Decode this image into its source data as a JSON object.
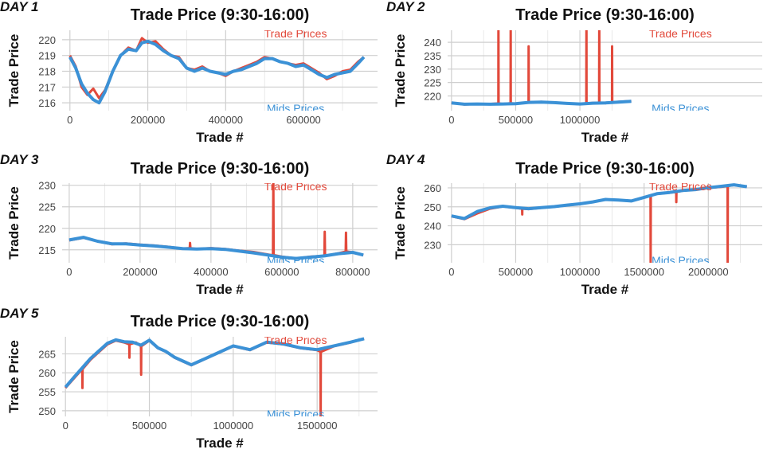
{
  "colors": {
    "trade": "#e2493b",
    "mids": "#3b91d6",
    "grid": "#cfcfcf",
    "text": "#111111"
  },
  "chart_data": [
    {
      "type": "line",
      "day_label": "DAY 1",
      "title": "Trade Price (9:30-16:00)",
      "xlabel": "Trade #",
      "ylabel": "Trade Price",
      "xlim": [
        -20000,
        790000
      ],
      "ylim": [
        215.5,
        220.6
      ],
      "xticks": [
        0,
        200000,
        400000,
        600000
      ],
      "xtick_labels": [
        "0",
        "200000",
        "400000",
        "600000"
      ],
      "yticks": [
        216,
        217,
        218,
        219,
        220
      ],
      "ytick_labels": [
        "216",
        "217",
        "218",
        "219",
        "220"
      ],
      "grid": true,
      "series": [
        {
          "name": "Trade Prices",
          "x": [
            0,
            15000,
            30000,
            45000,
            60000,
            75000,
            90000,
            110000,
            130000,
            150000,
            170000,
            185000,
            200000,
            220000,
            240000,
            260000,
            280000,
            300000,
            320000,
            340000,
            360000,
            380000,
            400000,
            420000,
            440000,
            460000,
            480000,
            500000,
            520000,
            540000,
            560000,
            580000,
            600000,
            620000,
            640000,
            660000,
            680000,
            700000,
            720000,
            740000,
            755000
          ],
          "y": [
            219.0,
            218.3,
            217.0,
            216.5,
            216.9,
            216.3,
            216.8,
            218.0,
            219.0,
            219.5,
            219.3,
            220.1,
            219.8,
            219.9,
            219.4,
            219.0,
            218.9,
            218.2,
            218.1,
            218.3,
            218.0,
            217.9,
            217.7,
            218.0,
            218.2,
            218.4,
            218.6,
            218.9,
            218.8,
            218.6,
            218.5,
            218.4,
            218.5,
            218.2,
            217.9,
            217.5,
            217.7,
            218.0,
            218.1,
            218.6,
            218.9
          ]
        },
        {
          "name": "Mids Prices",
          "x": [
            0,
            15000,
            30000,
            45000,
            60000,
            75000,
            90000,
            110000,
            130000,
            150000,
            170000,
            185000,
            200000,
            220000,
            240000,
            260000,
            280000,
            300000,
            320000,
            340000,
            360000,
            380000,
            400000,
            420000,
            440000,
            460000,
            480000,
            500000,
            520000,
            540000,
            560000,
            580000,
            600000,
            620000,
            640000,
            660000,
            680000,
            700000,
            720000,
            740000,
            755000
          ],
          "y": [
            218.9,
            218.2,
            217.2,
            216.6,
            216.2,
            216.0,
            216.7,
            218.0,
            219.0,
            219.4,
            219.3,
            219.8,
            219.9,
            219.7,
            219.3,
            219.0,
            218.8,
            218.2,
            218.0,
            218.2,
            218.0,
            217.9,
            217.8,
            218.0,
            218.1,
            218.3,
            218.5,
            218.8,
            218.8,
            218.6,
            218.5,
            218.3,
            218.4,
            218.1,
            217.8,
            217.6,
            217.8,
            217.9,
            218.0,
            218.5,
            218.9
          ]
        }
      ]
    },
    {
      "type": "line",
      "day_label": "DAY 2",
      "title": "Trade Price (9:30-16:00)",
      "xlabel": "Trade #",
      "ylabel": "Trade Price",
      "xlim": [
        -30000,
        2420000
      ],
      "ylim": [
        214.5,
        244.5
      ],
      "xticks": [
        0,
        500000,
        1000000
      ],
      "xtick_labels": [
        "0",
        "500000",
        "1000000"
      ],
      "yticks": [
        220,
        225,
        230,
        235,
        240
      ],
      "ytick_labels": [
        "220",
        "225",
        "230",
        "235",
        "240"
      ],
      "grid": true,
      "series": [
        {
          "name": "Trade Prices",
          "x": [
            0,
            100000,
            200000,
            300000,
            365000,
            366000,
            367000,
            400000,
            460000,
            461000,
            462000,
            500000,
            600000,
            601000,
            602000,
            700000,
            800000,
            900000,
            1000000,
            1050000,
            1051000,
            1052000,
            1100000,
            1150000,
            1151000,
            1152000,
            1200000,
            1250000,
            1251000,
            1252000,
            1300000,
            1400000
          ],
          "y": [
            217.5,
            216.8,
            217.0,
            217.0,
            217.2,
            250,
            217.2,
            217.0,
            217.3,
            250,
            217.3,
            217.1,
            217.6,
            238.5,
            217.6,
            217.8,
            217.5,
            217.2,
            216.9,
            217.2,
            250,
            217.2,
            217.4,
            217.5,
            250,
            217.5,
            217.3,
            217.6,
            238.5,
            217.6,
            217.8,
            218.1
          ]
        },
        {
          "name": "Mids Prices",
          "x": [
            0,
            100000,
            200000,
            300000,
            400000,
            500000,
            600000,
            700000,
            800000,
            900000,
            1000000,
            1100000,
            1200000,
            1300000,
            1400000
          ],
          "y": [
            217.4,
            216.9,
            217.0,
            216.9,
            217.0,
            217.1,
            217.6,
            217.7,
            217.5,
            217.2,
            217.0,
            217.3,
            217.4,
            217.7,
            218.0
          ]
        }
      ]
    },
    {
      "type": "line",
      "day_label": "DAY 3",
      "title": "Trade Price (9:30-16:00)",
      "xlabel": "Trade #",
      "ylabel": "Trade Price",
      "xlim": [
        -20000,
        870000
      ],
      "ylim": [
        212.0,
        230.5
      ],
      "xticks": [
        0,
        200000,
        400000,
        600000,
        800000
      ],
      "xtick_labels": [
        "0",
        "200000",
        "400000",
        "600000",
        "800000"
      ],
      "yticks": [
        215,
        220,
        225,
        230
      ],
      "ytick_labels": [
        "215",
        "220",
        "225",
        "230"
      ],
      "grid": true,
      "series": [
        {
          "name": "Trade Prices",
          "x": [
            0,
            40000,
            80000,
            120000,
            160000,
            200000,
            240000,
            280000,
            320000,
            340000,
            341000,
            342000,
            360000,
            400000,
            440000,
            480000,
            520000,
            570000,
            575000,
            576000,
            577000,
            600000,
            640000,
            680000,
            720000,
            721000,
            722000,
            760000,
            780000,
            781000,
            782000,
            800000,
            830000
          ],
          "y": [
            217.2,
            217.8,
            217.0,
            216.3,
            216.5,
            216.2,
            216.0,
            215.7,
            215.3,
            215.4,
            216.6,
            215.4,
            215.2,
            215.4,
            215.2,
            214.8,
            214.5,
            213.8,
            213.8,
            231,
            213.8,
            213.4,
            213.0,
            213.4,
            213.6,
            219.2,
            213.6,
            214.2,
            214.6,
            219.0,
            214.6,
            214.4,
            213.8
          ]
        },
        {
          "name": "Mids Prices",
          "x": [
            0,
            40000,
            80000,
            120000,
            160000,
            200000,
            240000,
            280000,
            320000,
            360000,
            400000,
            440000,
            480000,
            520000,
            560000,
            600000,
            640000,
            680000,
            720000,
            760000,
            800000,
            830000
          ],
          "y": [
            217.3,
            217.9,
            217.0,
            216.4,
            216.4,
            216.1,
            215.9,
            215.6,
            215.3,
            215.2,
            215.3,
            215.1,
            214.7,
            214.3,
            213.8,
            213.3,
            213.0,
            213.3,
            213.6,
            214.1,
            214.4,
            213.8
          ]
        }
      ]
    },
    {
      "type": "line",
      "day_label": "DAY 4",
      "title": "Trade Price (9:30-16:00)",
      "xlabel": "Trade #",
      "ylabel": "Trade Price",
      "xlim": [
        -30000,
        2420000
      ],
      "ylim": [
        220.5,
        262.5
      ],
      "xticks": [
        0,
        500000,
        1000000,
        1500000,
        2000000
      ],
      "xtick_labels": [
        "0",
        "500000",
        "1000000",
        "1500000",
        "2000000"
      ],
      "yticks": [
        230,
        240,
        250,
        260
      ],
      "ytick_labels": [
        "230",
        "240",
        "250",
        "260"
      ],
      "grid": true,
      "series": [
        {
          "name": "Trade Prices",
          "x": [
            0,
            100000,
            200000,
            300000,
            400000,
            500000,
            550000,
            551000,
            552000,
            600000,
            700000,
            800000,
            900000,
            1000000,
            1100000,
            1200000,
            1300000,
            1400000,
            1500000,
            1550000,
            1551000,
            1552000,
            1600000,
            1700000,
            1750000,
            1751000,
            1752000,
            1800000,
            1900000,
            2000000,
            2100000,
            2150000,
            2151000,
            2152000,
            2200000,
            2300000
          ],
          "y": [
            245.0,
            243.5,
            246.5,
            249.0,
            250.2,
            249.5,
            249.0,
            246.0,
            249.0,
            248.8,
            249.5,
            250.0,
            250.8,
            251.5,
            252.5,
            253.8,
            253.5,
            253.0,
            255.0,
            256.0,
            218,
            256.0,
            256.8,
            257.5,
            257.8,
            252.5,
            257.8,
            258.5,
            259.0,
            260.0,
            260.5,
            261.0,
            218,
            261.0,
            261.5,
            260.5
          ]
        },
        {
          "name": "Mids Prices",
          "x": [
            0,
            100000,
            200000,
            300000,
            400000,
            500000,
            600000,
            700000,
            800000,
            900000,
            1000000,
            1100000,
            1200000,
            1300000,
            1400000,
            1500000,
            1600000,
            1700000,
            1800000,
            1900000,
            2000000,
            2100000,
            2200000,
            2300000
          ],
          "y": [
            245.2,
            243.8,
            247.5,
            249.5,
            250.3,
            249.6,
            249.0,
            249.6,
            250.1,
            250.9,
            251.6,
            252.6,
            253.9,
            253.6,
            253.1,
            255.0,
            256.9,
            257.6,
            258.6,
            259.1,
            260.1,
            260.8,
            261.6,
            260.6
          ]
        }
      ]
    },
    {
      "type": "line",
      "day_label": "DAY 5",
      "title": "Trade Price (9:30-16:00)",
      "xlabel": "Trade #",
      "ylabel": "Trade Price",
      "xlim": [
        -20000,
        1860000
      ],
      "ylim": [
        248.5,
        269.5
      ],
      "xticks": [
        0,
        500000,
        1000000,
        1500000
      ],
      "xtick_labels": [
        "0",
        "500000",
        "1000000",
        "1500000"
      ],
      "yticks": [
        250,
        255,
        260,
        265
      ],
      "ytick_labels": [
        "250",
        "255",
        "260",
        "265"
      ],
      "grid": true,
      "series": [
        {
          "name": "Trade Prices",
          "x": [
            0,
            50000,
            100000,
            101000,
            102000,
            150000,
            200000,
            250000,
            300000,
            350000,
            380000,
            381000,
            382000,
            420000,
            450000,
            451000,
            452000,
            500000,
            550000,
            600000,
            650000,
            700000,
            750000,
            800000,
            900000,
            1000000,
            1100000,
            1200000,
            1300000,
            1400000,
            1500000,
            1520000,
            1521000,
            1522000,
            1600000,
            1700000,
            1780000
          ],
          "y": [
            256.0,
            258.5,
            261.0,
            256.0,
            261.0,
            263.5,
            265.5,
            267.5,
            268.5,
            268.0,
            267.5,
            264.0,
            267.5,
            268.0,
            267.0,
            259.5,
            267.0,
            268.5,
            266.5,
            265.5,
            264.0,
            263.0,
            262.0,
            263.0,
            265.0,
            267.0,
            266.0,
            268.0,
            267.5,
            266.5,
            266.0,
            265.5,
            246.0,
            265.5,
            267.0,
            268.0,
            269.0
          ]
        },
        {
          "name": "Mids Prices",
          "x": [
            0,
            50000,
            100000,
            150000,
            200000,
            250000,
            300000,
            350000,
            400000,
            450000,
            500000,
            550000,
            600000,
            650000,
            700000,
            750000,
            800000,
            900000,
            1000000,
            1100000,
            1200000,
            1300000,
            1400000,
            1500000,
            1600000,
            1700000,
            1780000
          ],
          "y": [
            256.2,
            258.8,
            261.3,
            263.8,
            265.8,
            267.8,
            268.7,
            268.2,
            268.1,
            267.3,
            268.6,
            266.6,
            265.6,
            264.1,
            263.1,
            262.1,
            263.1,
            265.1,
            267.1,
            266.1,
            268.1,
            267.6,
            266.6,
            266.1,
            267.1,
            268.1,
            269.0
          ]
        }
      ]
    }
  ]
}
